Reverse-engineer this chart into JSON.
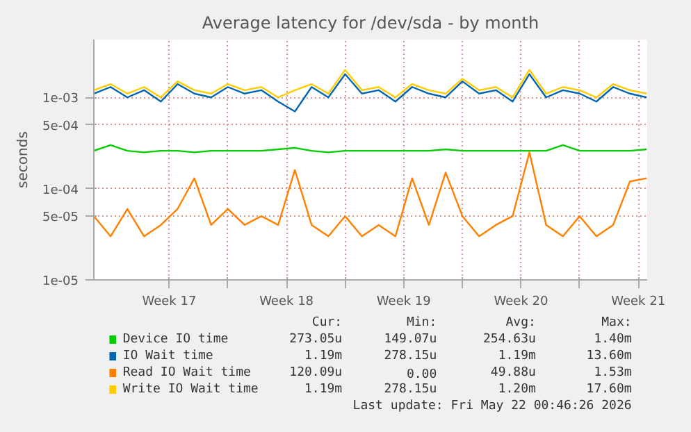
{
  "chart_data": {
    "type": "line",
    "title": "Average latency for /dev/sda - by month",
    "ylabel": "seconds",
    "log": true,
    "grid": true,
    "legend": "bottom",
    "ylim": [
      1e-05,
      0.0043
    ],
    "yticks": [
      {
        "value": 1e-05,
        "label": "1e-05"
      },
      {
        "value": 5e-05,
        "label": "5e-05"
      },
      {
        "value": 0.0001,
        "label": "1e-04"
      },
      {
        "value": 0.0005,
        "label": "5e-04"
      },
      {
        "value": 0.001,
        "label": "1e-03"
      }
    ],
    "xlim": [
      "2026-04-19T00:00",
      "2026-05-22T00:46"
    ],
    "xticks": [
      {
        "value": "2026-04-23T12:00",
        "label": "Week 17"
      },
      {
        "value": "2026-04-27",
        "label": null
      },
      {
        "value": "2026-04-30T12:00",
        "label": "Week 18"
      },
      {
        "value": "2026-05-04",
        "label": null
      },
      {
        "value": "2026-05-07T12:00",
        "label": "Week 19"
      },
      {
        "value": "2026-05-11",
        "label": null
      },
      {
        "value": "2026-05-14T12:00",
        "label": "Week 20"
      },
      {
        "value": "2026-05-18",
        "label": null
      },
      {
        "value": "2026-05-21T12:00",
        "label": "Week 21"
      }
    ],
    "x": [
      "2026-04-19",
      "2026-04-20",
      "2026-04-21",
      "2026-04-22",
      "2026-04-23",
      "2026-04-24",
      "2026-04-25",
      "2026-04-26",
      "2026-04-27",
      "2026-04-28",
      "2026-04-29",
      "2026-04-30",
      "2026-05-01",
      "2026-05-02",
      "2026-05-03",
      "2026-05-04",
      "2026-05-05",
      "2026-05-06",
      "2026-05-07",
      "2026-05-08",
      "2026-05-09",
      "2026-05-10",
      "2026-05-11",
      "2026-05-12",
      "2026-05-13",
      "2026-05-14",
      "2026-05-15",
      "2026-05-16",
      "2026-05-17",
      "2026-05-18",
      "2026-05-19",
      "2026-05-20",
      "2026-05-21",
      "2026-05-22"
    ],
    "series": [
      {
        "name": "Device IO time",
        "color": "#00cc00",
        "values": [
          0.00026,
          0.0003,
          0.00026,
          0.00025,
          0.00026,
          0.00026,
          0.00025,
          0.00026,
          0.00026,
          0.00026,
          0.00026,
          0.00027,
          0.00028,
          0.00026,
          0.00025,
          0.00026,
          0.00026,
          0.00026,
          0.00026,
          0.00026,
          0.00026,
          0.00027,
          0.00026,
          0.00026,
          0.00026,
          0.00026,
          0.00026,
          0.00026,
          0.0003,
          0.00026,
          0.00026,
          0.00026,
          0.00026,
          0.00027
        ]
      },
      {
        "name": "IO Wait time",
        "color": "#0066b3",
        "values": [
          0.0011,
          0.0013,
          0.001,
          0.0012,
          0.0009,
          0.0014,
          0.0011,
          0.001,
          0.0013,
          0.0011,
          0.0012,
          0.0009,
          0.0007,
          0.0013,
          0.001,
          0.0018,
          0.0011,
          0.0012,
          0.0009,
          0.0013,
          0.0011,
          0.001,
          0.0015,
          0.0011,
          0.0012,
          0.0009,
          0.0018,
          0.001,
          0.0012,
          0.0011,
          0.0009,
          0.0013,
          0.0011,
          0.001
        ]
      },
      {
        "name": "Read IO Wait time",
        "color": "#ff8000",
        "values": [
          5e-05,
          3e-05,
          6e-05,
          3e-05,
          4e-05,
          6e-05,
          0.00013,
          4e-05,
          6e-05,
          4e-05,
          5e-05,
          4e-05,
          0.00016,
          4e-05,
          3e-05,
          5e-05,
          3e-05,
          4e-05,
          3e-05,
          0.00013,
          4e-05,
          0.00015,
          5e-05,
          3e-05,
          4e-05,
          5e-05,
          0.00025,
          4e-05,
          3e-05,
          5e-05,
          3e-05,
          4e-05,
          0.00012,
          0.00013
        ]
      },
      {
        "name": "Write IO Wait time",
        "color": "#ffcc00",
        "values": [
          0.0012,
          0.0014,
          0.0011,
          0.0013,
          0.001,
          0.0015,
          0.0012,
          0.0011,
          0.0014,
          0.0012,
          0.0013,
          0.001,
          0.0012,
          0.0014,
          0.0011,
          0.002,
          0.0012,
          0.0013,
          0.001,
          0.0014,
          0.0012,
          0.0011,
          0.0016,
          0.0012,
          0.0013,
          0.001,
          0.002,
          0.0011,
          0.0013,
          0.0012,
          0.001,
          0.0014,
          0.0012,
          0.0011
        ]
      }
    ],
    "annotations": [
      "Cur:",
      "Min:",
      "Avg:",
      "Max:",
      "273.05u",
      "149.07u",
      "254.63u",
      "1.40m",
      "1.19m",
      "278.15u",
      "1.19m",
      "13.60m",
      "120.09u",
      "0.00",
      "49.88u",
      "1.53m",
      "1.19m",
      "278.15u",
      "1.20m",
      "17.60m",
      "Last update: Fri May 22 00:46:26 2026"
    ]
  }
}
